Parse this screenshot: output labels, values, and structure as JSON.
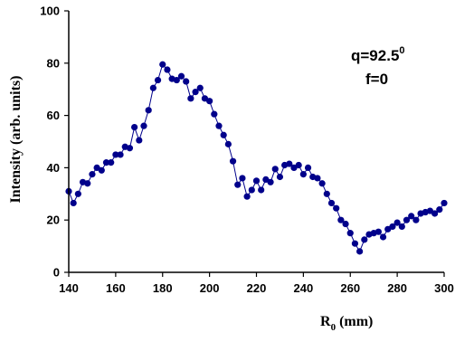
{
  "chart_data": {
    "type": "line",
    "xlabel": {
      "main": "R",
      "sub": "0",
      "rest": " (mm)"
    },
    "ylabel": "Intensity (arb. units)",
    "xlim": [
      140,
      300
    ],
    "ylim": [
      0,
      100
    ],
    "xticks": [
      "140",
      "160",
      "180",
      "200",
      "220",
      "240",
      "260",
      "280",
      "300"
    ],
    "yticks": [
      "0",
      "20",
      "40",
      "60",
      "80",
      "100"
    ],
    "grid": false,
    "annotation": {
      "line1_base": "q=92.5",
      "line1_sup": "0",
      "line2": "f=0"
    },
    "series": [
      {
        "color": "#00008b",
        "marker": "circle",
        "x": [
          140,
          142,
          144,
          146,
          148,
          150,
          152,
          154,
          156,
          158,
          160,
          162,
          164,
          166,
          168,
          170,
          172,
          174,
          176,
          178,
          180,
          182,
          184,
          186,
          188,
          190,
          192,
          194,
          196,
          198,
          200,
          202,
          204,
          206,
          208,
          210,
          212,
          214,
          216,
          218,
          220,
          222,
          224,
          226,
          228,
          230,
          232,
          234,
          236,
          238,
          240,
          242,
          244,
          246,
          248,
          250,
          252,
          254,
          256,
          258,
          260,
          262,
          264,
          266,
          268,
          270,
          272,
          274,
          276,
          278,
          280,
          282,
          284,
          286,
          288,
          290,
          292,
          294,
          296,
          298,
          300
        ],
        "y": [
          31,
          26.5,
          30,
          34.5,
          34,
          37.5,
          40,
          39,
          42,
          42,
          45,
          45,
          48,
          47.5,
          55.5,
          50.5,
          56,
          62,
          70.5,
          73.5,
          79.5,
          77.5,
          74,
          73.5,
          75,
          73,
          66.5,
          69,
          70.5,
          66.5,
          65.5,
          60.5,
          56,
          52.5,
          49,
          42.5,
          33.5,
          36,
          29,
          31.5,
          35,
          31.5,
          35.5,
          34.5,
          39.5,
          36.5,
          41,
          41.5,
          40,
          41,
          37.5,
          40,
          36.5,
          36,
          34,
          30,
          26.5,
          24.5,
          20,
          18.5,
          15,
          11,
          8,
          12.5,
          14.5,
          15,
          15.5,
          13.5,
          16.5,
          17.5,
          19,
          17.5,
          20,
          21.5,
          20,
          22.5,
          23,
          23.5,
          22.5,
          24,
          26.5
        ]
      }
    ]
  }
}
